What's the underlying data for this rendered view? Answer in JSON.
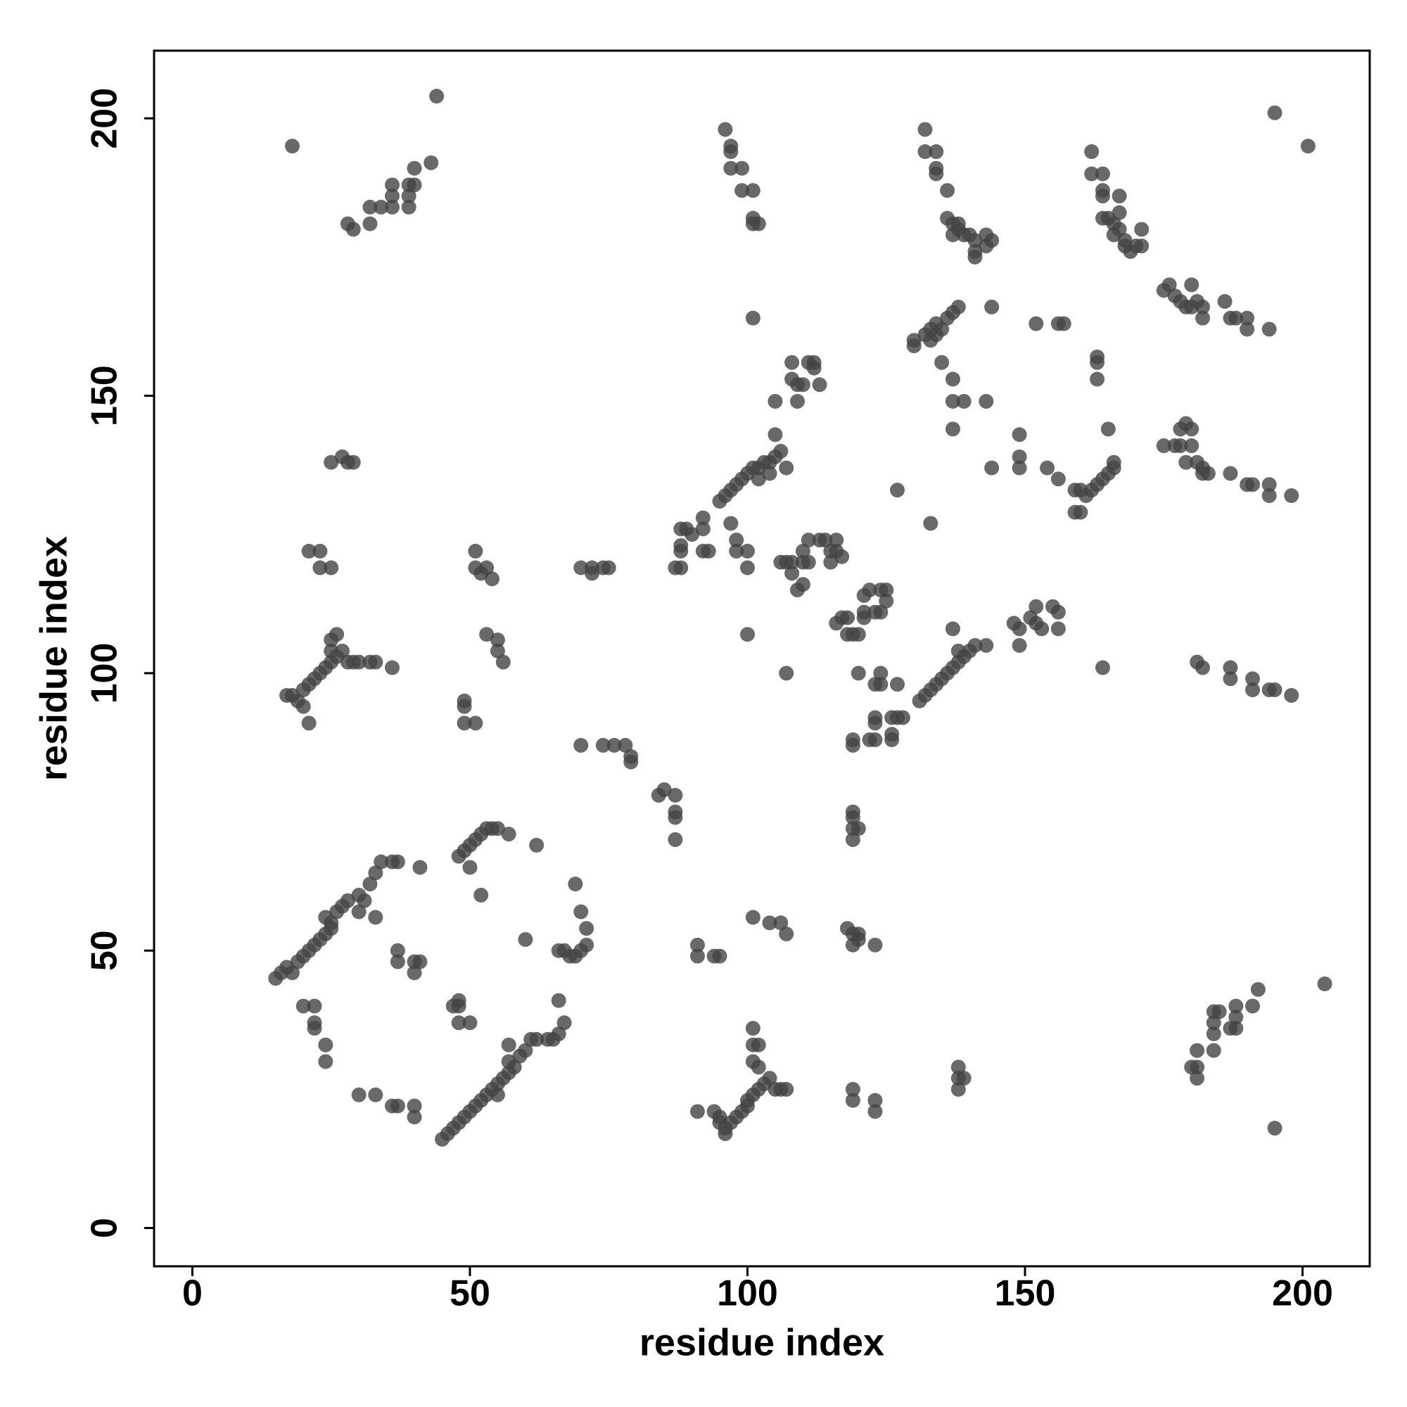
{
  "chart_data": {
    "type": "scatter",
    "xlabel": "residue index",
    "ylabel": "residue index",
    "color": "#444444",
    "alpha": 0.8,
    "xlim": [
      -6.9,
      212.1
    ],
    "ylim": [
      -6.9,
      212.2
    ],
    "xticks": [
      0,
      50,
      100,
      150,
      200
    ],
    "yticks": [
      0,
      50,
      100,
      150,
      200
    ],
    "x": [
      15,
      16,
      17,
      18,
      19,
      20,
      21,
      22,
      23,
      24,
      25,
      26,
      27,
      28,
      30,
      31,
      32,
      33,
      34,
      36,
      37,
      41,
      24,
      25,
      30,
      33,
      37,
      37,
      40,
      40,
      41,
      20,
      22,
      22,
      22,
      24,
      24,
      30,
      33,
      36,
      37,
      40,
      40,
      45,
      46,
      47,
      48,
      49,
      50,
      51,
      52,
      53,
      54,
      55,
      56,
      57,
      58,
      59,
      60,
      61,
      62,
      64,
      65,
      66,
      67,
      66,
      57,
      57,
      55,
      47,
      48,
      48,
      48,
      50,
      48,
      49,
      50,
      51,
      52,
      53,
      54,
      55,
      57,
      62,
      50,
      52,
      60,
      69,
      70,
      71,
      71,
      70,
      69,
      68,
      67,
      66,
      49,
      49,
      49,
      51,
      17,
      18,
      19,
      20,
      20,
      21,
      22,
      23,
      24,
      25,
      25,
      25,
      26,
      26,
      27,
      28,
      29,
      30,
      32,
      33,
      36,
      21,
      21,
      23,
      23,
      25,
      25,
      27,
      28,
      29,
      51,
      51,
      52,
      53,
      54,
      53,
      55,
      55,
      56,
      18,
      28,
      29,
      32,
      32,
      34,
      36,
      36,
      36,
      39,
      39,
      39,
      40,
      40,
      43,
      44,
      70,
      72,
      72,
      74,
      75,
      70,
      74,
      76,
      78,
      79,
      79,
      84,
      85,
      87,
      87,
      87,
      87,
      87,
      88,
      88,
      88,
      88,
      89,
      90,
      92,
      93,
      92,
      92,
      97,
      98,
      98,
      100,
      100,
      100,
      95,
      96,
      97,
      98,
      99,
      100,
      101,
      102,
      103,
      104,
      105,
      106,
      104,
      102,
      105,
      105,
      107,
      108,
      108,
      109,
      109,
      110,
      111,
      112,
      112,
      113,
      106,
      107,
      108,
      110,
      111,
      110,
      111,
      109,
      110,
      108,
      113,
      114,
      115,
      116,
      115,
      117,
      116,
      107,
      116,
      117,
      118,
      118,
      119,
      120,
      120,
      121,
      121,
      121,
      122,
      124,
      125,
      125,
      124,
      123,
      123,
      124,
      124,
      127,
      119,
      119,
      122,
      123,
      123,
      123,
      126,
      126,
      126,
      127,
      128,
      119,
      119,
      119,
      120,
      119,
      118,
      119,
      120,
      120,
      119,
      123,
      101,
      104,
      106,
      107,
      91,
      91,
      94,
      95,
      91,
      94,
      95,
      95,
      96,
      96,
      97,
      98,
      99,
      100,
      100,
      101,
      102,
      103,
      104,
      105,
      106,
      107,
      101,
      101,
      102,
      102,
      101,
      119,
      119,
      123,
      123,
      138,
      138,
      139,
      138,
      131,
      132,
      133,
      134,
      135,
      136,
      137,
      138,
      139,
      140,
      141,
      143,
      137,
      138,
      148,
      149,
      149,
      151,
      152,
      152,
      153,
      155,
      156,
      156,
      127,
      130,
      130,
      132,
      133,
      134,
      135,
      136,
      137,
      138,
      134,
      133,
      135,
      137,
      137,
      139,
      137,
      143,
      144,
      144,
      149,
      149,
      149,
      154,
      156,
      133,
      152,
      156,
      157,
      159,
      160,
      161,
      162,
      163,
      164,
      165,
      166,
      166,
      159,
      160,
      163,
      163,
      163,
      165,
      164,
      132,
      132,
      134,
      134,
      134,
      136,
      136,
      137,
      138,
      138,
      139,
      140,
      141,
      141,
      141,
      143,
      143,
      144,
      137,
      96,
      97,
      97,
      97,
      99,
      99,
      101,
      101,
      101,
      102,
      101,
      162,
      162,
      164,
      164,
      164,
      164,
      165,
      166,
      166,
      167,
      167,
      168,
      168,
      169,
      170,
      171,
      171,
      167,
      175,
      176,
      177,
      178,
      179,
      180,
      181,
      182,
      182,
      180,
      186,
      187,
      188,
      190,
      190,
      194,
      175,
      177,
      178,
      178,
      179,
      180,
      180,
      181,
      182,
      182,
      183,
      179,
      187,
      190,
      191,
      194,
      194,
      198,
      181,
      182,
      187,
      187,
      191,
      191,
      194,
      195,
      198,
      180,
      181,
      181,
      181,
      184,
      184,
      184,
      184,
      185,
      187,
      188,
      188,
      188,
      191,
      192,
      204,
      195,
      195,
      201
    ],
    "values": [
      45,
      46,
      47,
      46,
      48,
      49,
      50,
      51,
      52,
      53,
      55,
      57,
      58,
      59,
      60,
      59,
      62,
      64,
      66,
      66,
      66,
      65,
      56,
      54,
      57,
      56,
      50,
      48,
      48,
      46,
      48,
      40,
      40,
      37,
      36,
      33,
      30,
      24,
      24,
      22,
      22,
      22,
      20,
      16,
      17,
      18,
      19,
      20,
      21,
      22,
      23,
      24,
      25,
      26,
      27,
      28,
      29,
      31,
      32,
      34,
      34,
      34,
      34,
      35,
      37,
      41,
      30,
      33,
      24,
      40,
      40,
      41,
      37,
      37,
      67,
      68,
      69,
      70,
      71,
      72,
      72,
      72,
      71,
      69,
      65,
      60,
      52,
      62,
      57,
      54,
      51,
      50,
      49,
      49,
      50,
      50,
      95,
      94,
      91,
      91,
      96,
      96,
      95,
      94,
      97,
      98,
      99,
      100,
      101,
      102,
      104,
      106,
      107,
      103,
      104,
      102,
      102,
      102,
      102,
      102,
      101,
      91,
      122,
      122,
      119,
      119,
      138,
      139,
      138,
      138,
      122,
      119,
      118,
      119,
      117,
      107,
      106,
      104,
      102,
      195,
      181,
      180,
      181,
      184,
      184,
      184,
      186,
      188,
      184,
      186,
      188,
      188,
      191,
      192,
      204,
      119,
      119,
      118,
      119,
      119,
      87,
      87,
      87,
      87,
      85,
      84,
      78,
      79,
      78,
      75,
      74,
      70,
      119,
      119,
      122,
      123,
      126,
      126,
      125,
      122,
      122,
      126,
      128,
      127,
      124,
      122,
      122,
      119,
      107,
      131,
      132,
      133,
      134,
      135,
      136,
      137,
      137,
      138,
      138,
      139,
      140,
      136,
      135,
      143,
      149,
      137,
      153,
      156,
      149,
      152,
      152,
      156,
      156,
      155,
      152,
      120,
      120,
      120,
      120,
      120,
      122,
      124,
      115,
      116,
      118,
      124,
      124,
      122,
      122,
      120,
      121,
      124,
      100,
      109,
      110,
      110,
      107,
      107,
      107,
      100,
      110,
      111,
      114,
      115,
      115,
      115,
      113,
      111,
      111,
      98,
      98,
      100,
      98,
      88,
      87,
      88,
      88,
      91,
      92,
      88,
      89,
      92,
      92,
      92,
      75,
      74,
      72,
      72,
      70,
      54,
      53,
      53,
      52,
      51,
      51,
      56,
      55,
      55,
      53,
      51,
      49,
      49,
      49,
      21,
      21,
      20,
      19,
      18,
      17,
      19,
      20,
      21,
      22,
      23,
      24,
      25,
      26,
      27,
      25,
      25,
      25,
      30,
      33,
      33,
      29,
      36,
      25,
      23,
      23,
      21,
      29,
      27,
      27,
      25,
      95,
      96,
      97,
      98,
      99,
      100,
      101,
      102,
      103,
      104,
      105,
      105,
      108,
      104,
      109,
      105,
      108,
      110,
      112,
      109,
      108,
      112,
      111,
      108,
      133,
      159,
      160,
      161,
      162,
      161,
      162,
      164,
      165,
      166,
      163,
      160,
      156,
      153,
      149,
      149,
      144,
      149,
      166,
      137,
      143,
      137,
      139,
      137,
      135,
      127,
      163,
      163,
      163,
      133,
      133,
      132,
      133,
      134,
      135,
      136,
      137,
      138,
      129,
      129,
      153,
      156,
      157,
      144,
      101,
      198,
      194,
      194,
      191,
      190,
      187,
      182,
      181,
      180,
      181,
      179,
      179,
      178,
      176,
      175,
      177,
      179,
      178,
      179,
      198,
      195,
      194,
      191,
      191,
      187,
      187,
      182,
      181,
      181,
      164,
      194,
      190,
      190,
      187,
      186,
      182,
      182,
      181,
      179,
      183,
      180,
      178,
      177,
      176,
      177,
      177,
      180,
      186,
      169,
      170,
      168,
      167,
      166,
      166,
      167,
      166,
      164,
      170,
      167,
      164,
      164,
      164,
      162,
      162,
      141,
      141,
      141,
      144,
      145,
      144,
      141,
      138,
      137,
      136,
      136,
      138,
      136,
      134,
      134,
      134,
      132,
      132,
      102,
      101,
      101,
      99,
      99,
      97,
      97,
      97,
      96,
      29,
      29,
      27,
      32,
      32,
      35,
      37,
      39,
      39,
      36,
      36,
      38,
      40,
      40,
      43,
      44,
      18,
      201,
      195
    ]
  }
}
